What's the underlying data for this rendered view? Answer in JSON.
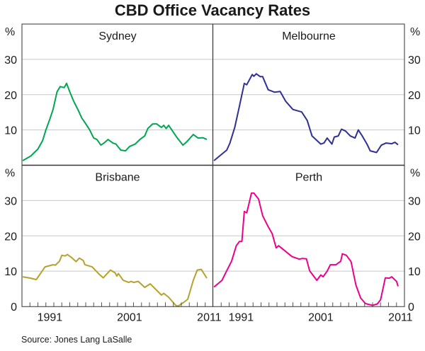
{
  "title": "CBD Office Vacancy Rates",
  "source": "Source: Jones Lang LaSalle",
  "unit_label": "%",
  "chart_data": {
    "type": "line",
    "title": "CBD Office Vacancy Rates",
    "xlim": [
      1988,
      2012
    ],
    "ylim": [
      0,
      40
    ],
    "yticks": [
      0,
      10,
      20,
      30
    ],
    "xtick_labels": [
      "1991",
      "2001",
      "2011"
    ],
    "xtick_label_years": [
      1991,
      2001,
      2011
    ],
    "minor_ticks": "every year",
    "ylabel": "%",
    "grid": true,
    "panels": [
      {
        "name": "Sydney",
        "color": "#00a651",
        "points": [
          [
            1988.1,
            1.3
          ],
          [
            1989.1,
            2.6
          ],
          [
            1990.0,
            4.6
          ],
          [
            1990.6,
            7.0
          ],
          [
            1991.0,
            10.0
          ],
          [
            1991.5,
            13.1
          ],
          [
            1991.9,
            15.8
          ],
          [
            1992.4,
            20.8
          ],
          [
            1992.8,
            22.3
          ],
          [
            1993.3,
            22.0
          ],
          [
            1993.6,
            23.2
          ],
          [
            1994.0,
            20.8
          ],
          [
            1994.5,
            18.1
          ],
          [
            1995.1,
            15.4
          ],
          [
            1995.5,
            13.4
          ],
          [
            1995.9,
            12.1
          ],
          [
            1996.5,
            10.0
          ],
          [
            1997.0,
            7.7
          ],
          [
            1997.4,
            7.3
          ],
          [
            1997.9,
            5.7
          ],
          [
            1998.3,
            6.3
          ],
          [
            1998.8,
            7.3
          ],
          [
            1999.4,
            6.3
          ],
          [
            1999.8,
            6.0
          ],
          [
            2000.4,
            4.3
          ],
          [
            2001.0,
            4.1
          ],
          [
            2001.5,
            5.3
          ],
          [
            2002.2,
            6.0
          ],
          [
            2002.8,
            7.3
          ],
          [
            2003.4,
            8.3
          ],
          [
            2003.8,
            10.4
          ],
          [
            2004.4,
            11.7
          ],
          [
            2004.9,
            11.7
          ],
          [
            2005.5,
            10.7
          ],
          [
            2005.8,
            11.3
          ],
          [
            2006.1,
            10.4
          ],
          [
            2006.4,
            11.3
          ],
          [
            2006.8,
            10.0
          ],
          [
            2007.4,
            8.0
          ],
          [
            2008.2,
            5.7
          ],
          [
            2008.7,
            6.7
          ],
          [
            2009.5,
            8.7
          ],
          [
            2010.1,
            7.7
          ],
          [
            2010.7,
            7.8
          ],
          [
            2011.2,
            7.3
          ]
        ]
      },
      {
        "name": "Melbourne",
        "color": "#2e3192",
        "points": [
          [
            1988.1,
            1.3
          ],
          [
            1989.0,
            3.0
          ],
          [
            1989.7,
            4.3
          ],
          [
            1990.1,
            6.3
          ],
          [
            1990.7,
            10.7
          ],
          [
            1991.3,
            16.8
          ],
          [
            1991.9,
            23.2
          ],
          [
            1992.2,
            22.8
          ],
          [
            1992.9,
            25.7
          ],
          [
            1993.1,
            25.2
          ],
          [
            1993.4,
            25.9
          ],
          [
            1993.9,
            25.1
          ],
          [
            1994.2,
            25.1
          ],
          [
            1994.9,
            21.4
          ],
          [
            1995.7,
            20.7
          ],
          [
            1996.4,
            20.9
          ],
          [
            1997.1,
            18.1
          ],
          [
            1998.0,
            15.8
          ],
          [
            1999.1,
            15.1
          ],
          [
            1999.8,
            12.7
          ],
          [
            2000.4,
            8.3
          ],
          [
            2001.5,
            6.0
          ],
          [
            2001.9,
            6.3
          ],
          [
            2002.3,
            7.7
          ],
          [
            2002.9,
            6.0
          ],
          [
            2003.2,
            8.0
          ],
          [
            2003.7,
            8.3
          ],
          [
            2004.1,
            10.2
          ],
          [
            2004.6,
            9.7
          ],
          [
            2005.2,
            8.3
          ],
          [
            2005.8,
            7.7
          ],
          [
            2006.2,
            10.0
          ],
          [
            2006.7,
            8.3
          ],
          [
            2007.3,
            6.0
          ],
          [
            2007.7,
            4.1
          ],
          [
            2008.5,
            3.6
          ],
          [
            2009.1,
            5.7
          ],
          [
            2009.7,
            6.3
          ],
          [
            2010.4,
            6.1
          ],
          [
            2010.8,
            6.5
          ],
          [
            2011.2,
            5.8
          ]
        ]
      },
      {
        "name": "Brisbane",
        "color": "#b5a22c",
        "points": [
          [
            1988.1,
            8.4
          ],
          [
            1989.1,
            8.0
          ],
          [
            1989.8,
            7.6
          ],
          [
            1990.9,
            11.2
          ],
          [
            1991.9,
            11.8
          ],
          [
            1992.2,
            11.7
          ],
          [
            1992.7,
            12.8
          ],
          [
            1993.0,
            14.5
          ],
          [
            1993.4,
            14.3
          ],
          [
            1993.7,
            14.7
          ],
          [
            1994.2,
            13.9
          ],
          [
            1994.8,
            12.7
          ],
          [
            1995.2,
            13.7
          ],
          [
            1995.7,
            13.0
          ],
          [
            1995.9,
            11.8
          ],
          [
            1996.8,
            11.2
          ],
          [
            1997.7,
            9.1
          ],
          [
            1998.2,
            8.1
          ],
          [
            1999.1,
            10.3
          ],
          [
            1999.7,
            9.5
          ],
          [
            1999.9,
            8.6
          ],
          [
            2000.1,
            9.3
          ],
          [
            2000.7,
            7.4
          ],
          [
            2001.4,
            6.8
          ],
          [
            2001.7,
            7.1
          ],
          [
            2002.0,
            6.8
          ],
          [
            2002.6,
            7.1
          ],
          [
            2003.4,
            5.4
          ],
          [
            2004.1,
            6.4
          ],
          [
            2005.5,
            3.2
          ],
          [
            2005.8,
            3.7
          ],
          [
            2006.4,
            2.6
          ],
          [
            2007.3,
            0.3
          ],
          [
            2007.6,
            0.1
          ],
          [
            2008.2,
            1.0
          ],
          [
            2008.8,
            2.0
          ],
          [
            2009.5,
            7.4
          ],
          [
            2010.0,
            10.3
          ],
          [
            2010.5,
            10.5
          ],
          [
            2011.2,
            8.0
          ]
        ]
      },
      {
        "name": "Perth",
        "color": "#ec008c",
        "points": [
          [
            1988.1,
            5.5
          ],
          [
            1989.1,
            7.4
          ],
          [
            1989.7,
            10.1
          ],
          [
            1990.3,
            12.8
          ],
          [
            1990.9,
            17.2
          ],
          [
            1991.3,
            18.4
          ],
          [
            1991.6,
            18.4
          ],
          [
            1991.9,
            26.9
          ],
          [
            1992.2,
            26.5
          ],
          [
            1992.5,
            29.2
          ],
          [
            1992.8,
            32.1
          ],
          [
            1993.1,
            32.1
          ],
          [
            1993.7,
            30.4
          ],
          [
            1994.2,
            25.7
          ],
          [
            1994.9,
            22.6
          ],
          [
            1995.4,
            20.6
          ],
          [
            1995.9,
            16.6
          ],
          [
            1996.2,
            17.2
          ],
          [
            1997.3,
            15.2
          ],
          [
            1997.9,
            14.1
          ],
          [
            1998.8,
            13.4
          ],
          [
            1999.2,
            13.6
          ],
          [
            1999.7,
            13.5
          ],
          [
            2000.1,
            10.1
          ],
          [
            2001.0,
            7.4
          ],
          [
            2001.5,
            8.9
          ],
          [
            2001.8,
            8.4
          ],
          [
            2002.3,
            10.0
          ],
          [
            2002.7,
            11.8
          ],
          [
            2003.4,
            11.8
          ],
          [
            2004.0,
            12.8
          ],
          [
            2004.2,
            14.9
          ],
          [
            2004.7,
            14.5
          ],
          [
            2005.3,
            12.7
          ],
          [
            2005.9,
            6.1
          ],
          [
            2006.5,
            2.4
          ],
          [
            2007.1,
            0.8
          ],
          [
            2008.0,
            0.3
          ],
          [
            2008.6,
            0.7
          ],
          [
            2009.0,
            1.9
          ],
          [
            2009.6,
            8.1
          ],
          [
            2010.1,
            8.0
          ],
          [
            2010.4,
            8.4
          ],
          [
            2011.0,
            7.1
          ],
          [
            2011.2,
            5.7
          ]
        ]
      }
    ]
  }
}
